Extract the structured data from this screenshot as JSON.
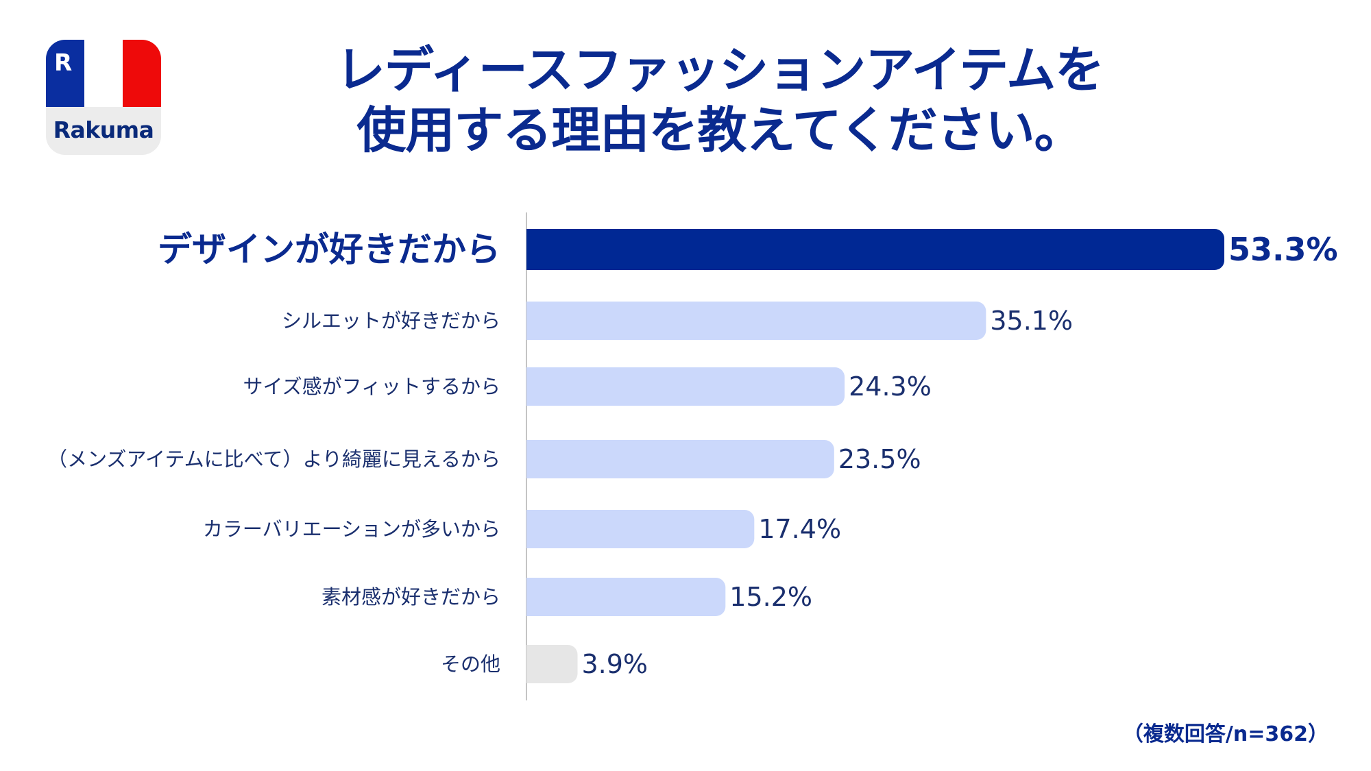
{
  "logo": {
    "monogram": "R",
    "brand": "Rakuma",
    "colors": {
      "blue": "#0a2ea0",
      "white": "#ffffff",
      "red": "#ee0a0a",
      "brand_text": "#0a2a7a"
    }
  },
  "colors": {
    "title": "#0a2a8f",
    "label": "#1a2f6e",
    "highlight_bar": "#002894",
    "light_bar": "#cbd8fb",
    "other_bar": "#e6e6e6",
    "axis": "#c4c4c4"
  },
  "chart_data": {
    "type": "bar",
    "orientation": "horizontal",
    "title_lines": [
      "レディースファッションアイテムを",
      "使用する理由を教えてください。"
    ],
    "categories": [
      "デザインが好きだから",
      "シルエットが好きだから",
      "サイズ感がフィットするから",
      "（メンズアイテムに比べて）より綺麗に見えるから",
      "カラーバリエーションが多いから",
      "素材感が好きだから",
      "その他"
    ],
    "values": [
      53.3,
      35.1,
      24.3,
      23.5,
      17.4,
      15.2,
      3.9
    ],
    "value_labels": [
      "53.3%",
      "35.1%",
      "24.3%",
      "23.5%",
      "17.4%",
      "15.2%",
      "3.9%"
    ],
    "highlight_index": 0,
    "other_index": 6,
    "unit": "%",
    "xlim": [
      0,
      53.3
    ],
    "grid": false,
    "note": "（複数回答/n=362）"
  }
}
